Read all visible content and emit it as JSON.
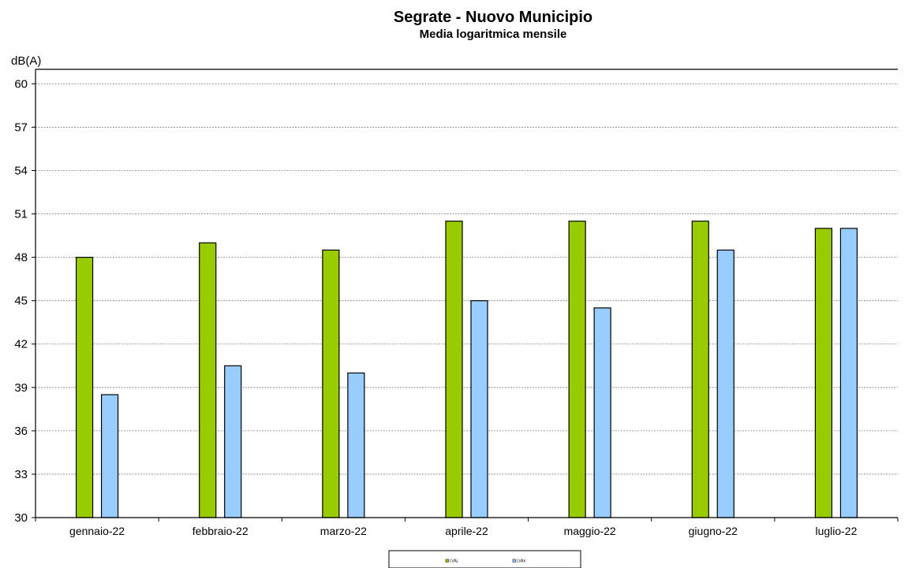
{
  "chart_data": {
    "type": "bar",
    "title": "Segrate - Nuovo Municipio",
    "subtitle": "Media logaritmica mensile",
    "unit_label": "dB(A)",
    "xlabel": "",
    "ylabel": "",
    "categories": [
      "gennaio-22",
      "febbraio-22",
      "marzo-22",
      "aprile-22",
      "maggio-22",
      "giugno-22",
      "luglio-22"
    ],
    "series": [
      {
        "name": "LVAj",
        "color": "#99cc00",
        "values": [
          48.0,
          49.0,
          48.5,
          50.5,
          50.5,
          50.5,
          50.0
        ]
      },
      {
        "name": "LVAn",
        "color": "#99ccff",
        "values": [
          38.5,
          40.5,
          40.0,
          45.0,
          44.5,
          48.5,
          50.0
        ]
      }
    ],
    "ylim": [
      30,
      61
    ],
    "yticks": [
      30,
      33,
      36,
      39,
      42,
      45,
      48,
      51,
      54,
      57,
      60
    ],
    "grid": true,
    "legend_position": "bottom"
  }
}
